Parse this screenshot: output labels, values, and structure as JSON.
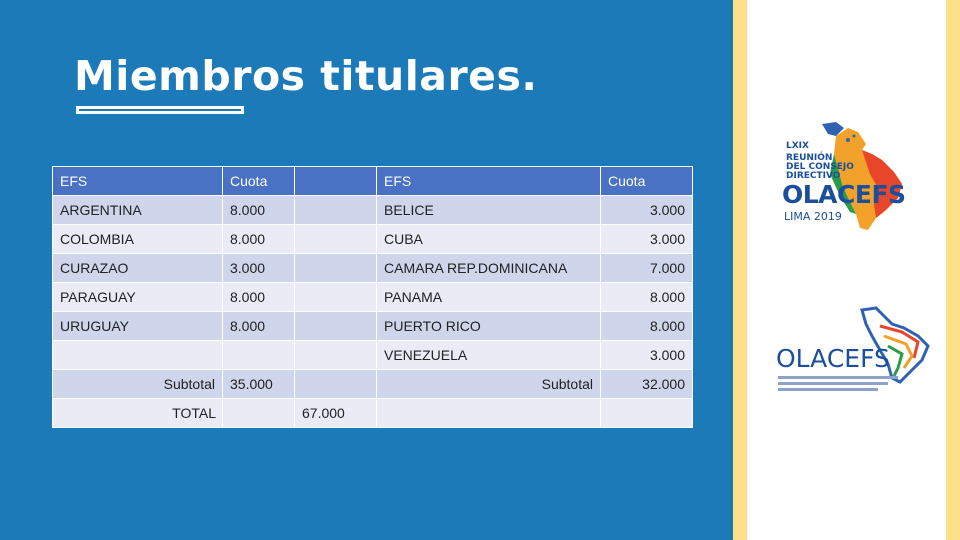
{
  "title": "Miembros titulares.",
  "table": {
    "header": [
      "EFS",
      "Cuota",
      "",
      "EFS",
      "Cuota"
    ],
    "rows": [
      [
        "ARGENTINA",
        "8.000",
        "",
        "BELICE",
        "3.000"
      ],
      [
        "COLOMBIA",
        "8.000",
        "",
        "CUBA",
        "3.000"
      ],
      [
        "CURAZAO",
        "3.000",
        "",
        "CAMARA REP.DOMINICANA",
        "7.000"
      ],
      [
        "PARAGUAY",
        "8.000",
        "",
        "PANAMA",
        "8.000"
      ],
      [
        "URUGUAY",
        "8.000",
        "",
        "PUERTO RICO",
        "8.000"
      ],
      [
        "",
        "",
        "",
        "VENEZUELA",
        "3.000"
      ]
    ],
    "subtotal": {
      "label_left": "Subtotal",
      "value_left": "35.000",
      "label_right": "Subtotal",
      "value_right": "32.000"
    },
    "total": {
      "label": "TOTAL",
      "value": "67.000"
    }
  },
  "logo_top": {
    "line1": "LXIX",
    "line2": "REUNIÓN",
    "line3": "DEL CONSEJO",
    "line4": "DIRECTIVO",
    "name": "OLACEFS",
    "place": "LIMA 2019"
  },
  "logo_bottom": {
    "name": "OLACEFS"
  },
  "colors": {
    "background": "#1c7ab9",
    "header_row": "#4a72c4",
    "row_odd": "#cfd5ea",
    "row_even": "#e9ebf5",
    "accent_strip": "#ffe08a",
    "logo_blue": "#1b4f9c"
  }
}
